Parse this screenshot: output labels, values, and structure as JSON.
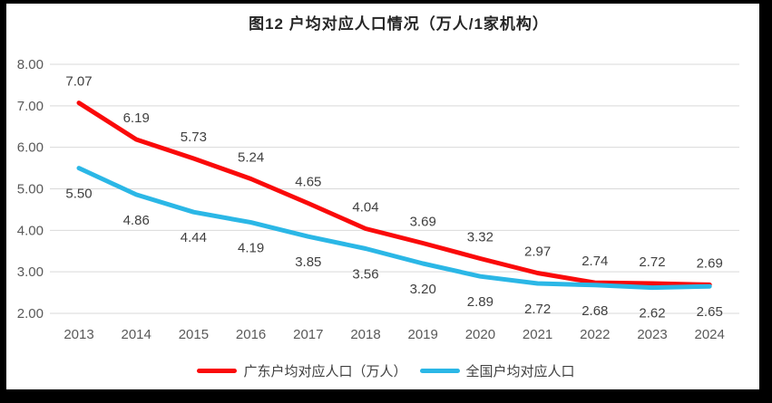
{
  "title": "图12 户均对应人口情况（万人/1家机构）",
  "chart_data": {
    "type": "line",
    "title": "图12 户均对应人口情况（万人/1家机构）",
    "categories": [
      "2013",
      "2014",
      "2015",
      "2016",
      "2017",
      "2018",
      "2019",
      "2020",
      "2021",
      "2022",
      "2023",
      "2024"
    ],
    "series": [
      {
        "name": "广东户均对应人口（万人）",
        "color": "#FA0A0A",
        "values": [
          7.07,
          6.19,
          5.73,
          5.24,
          4.65,
          4.04,
          3.69,
          3.32,
          2.97,
          2.74,
          2.72,
          2.69
        ],
        "label_position": "above"
      },
      {
        "name": "全国户均对应人口",
        "color": "#2BB7E6",
        "values": [
          5.5,
          4.86,
          4.44,
          4.19,
          3.85,
          3.56,
          3.2,
          2.89,
          2.72,
          2.68,
          2.62,
          2.65
        ],
        "label_position": "below"
      }
    ],
    "ylim": [
      2.0,
      8.0
    ],
    "ytick_labels": [
      "2.00",
      "3.00",
      "4.00",
      "5.00",
      "6.00",
      "7.00",
      "8.00"
    ],
    "xlabel": "",
    "ylabel": "",
    "grid": true,
    "legend_position": "bottom"
  },
  "colors": {
    "frame": "#000000",
    "background": "#FFFFFF",
    "grid": "#D9D9D9",
    "axis_text": "#595959",
    "data_label_text": "#404040",
    "title_text": "#262626"
  }
}
